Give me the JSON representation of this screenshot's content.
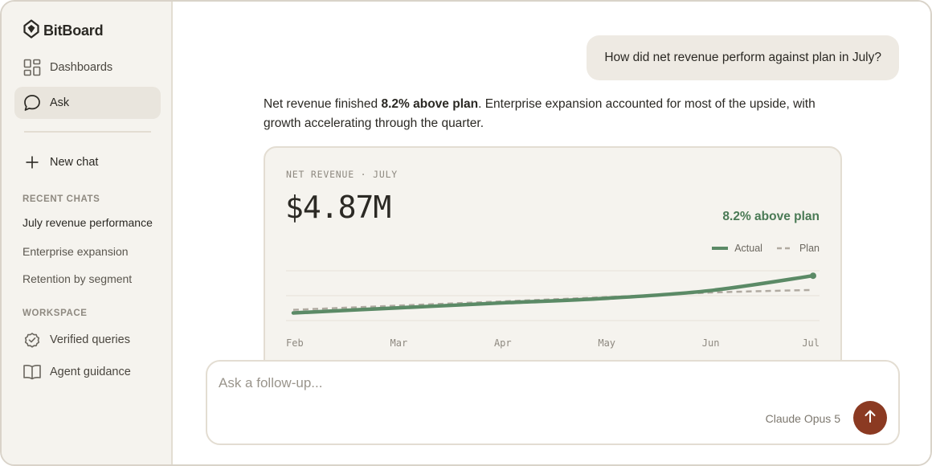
{
  "app": {
    "name": "BitBoard"
  },
  "sidebar": {
    "nav": [
      {
        "label": "Dashboards",
        "icon": "grid-icon"
      },
      {
        "label": "Ask",
        "icon": "chat-bubble-icon"
      }
    ],
    "new_chat_label": "New chat",
    "recent_title": "RECENT CHATS",
    "recent": [
      "July revenue performance",
      "Enterprise expansion",
      "Retention by segment"
    ],
    "workspace_title": "WORKSPACE",
    "workspace": [
      {
        "label": "Verified queries",
        "icon": "verified-badge-icon"
      },
      {
        "label": "Agent guidance",
        "icon": "book-icon"
      }
    ]
  },
  "conversation": {
    "user_message": "How did net revenue perform against plan in July?",
    "answer_pre": "Net revenue finished ",
    "answer_bold": "8.2% above plan",
    "answer_post": ". Enterprise expansion accounted for most of the upside, with growth accelerating through the quarter."
  },
  "card": {
    "label": "NET REVENUE · JULY",
    "value": "$4.87M",
    "delta": "8.2% above plan"
  },
  "chart_data": {
    "type": "line",
    "categories": [
      "Feb",
      "Mar",
      "Apr",
      "May",
      "Jun",
      "Jul"
    ],
    "series": [
      {
        "name": "Actual",
        "values": [
          3.9,
          4.03,
          4.16,
          4.28,
          4.48,
          4.87
        ]
      },
      {
        "name": "Plan",
        "values": [
          3.98,
          4.09,
          4.2,
          4.31,
          4.43,
          4.5
        ]
      }
    ],
    "colors": {
      "Actual": "#5b8a66",
      "Plan": "#b0aaa1"
    },
    "ylim": [
      3.7,
      5.0
    ],
    "grid": true,
    "legend": "top-right"
  },
  "composer": {
    "placeholder": "Ask a follow-up...",
    "model": "Claude Opus 5"
  },
  "colors": {
    "accent": "#8b3a22",
    "positive": "#4a7a55",
    "sidebar_bg": "#f5f3ee"
  }
}
